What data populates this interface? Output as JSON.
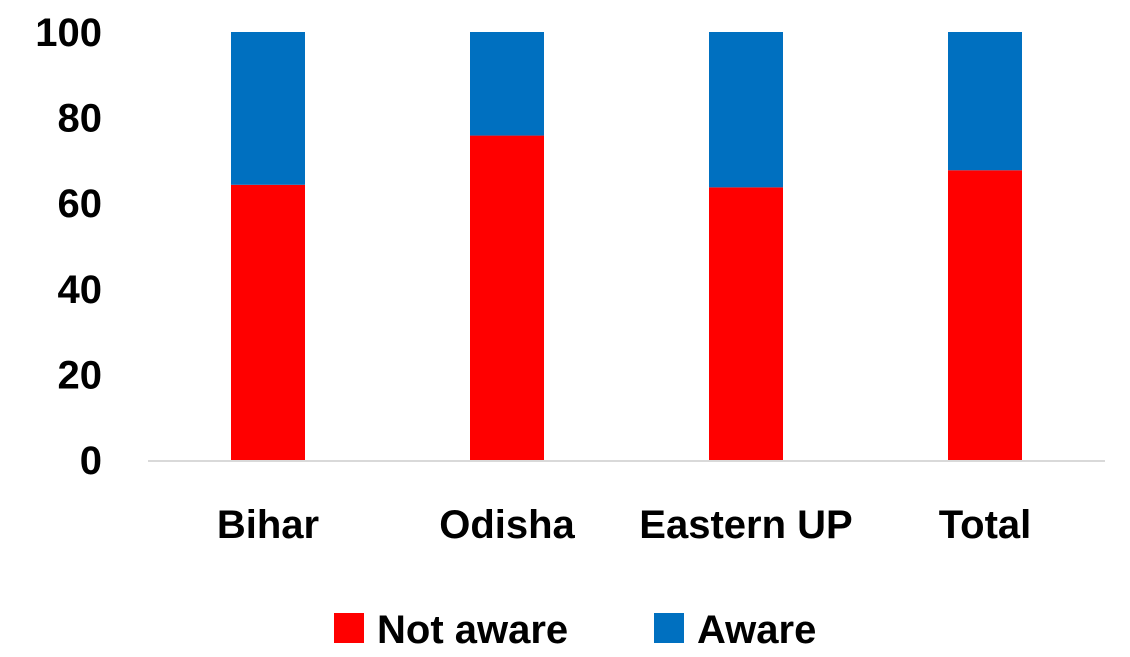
{
  "chart_data": {
    "type": "bar",
    "stacked": true,
    "categories": [
      "Bihar",
      "Odisha",
      "Eastern UP",
      "Total"
    ],
    "series": [
      {
        "name": "Not aware",
        "color": "#ff0000",
        "values": [
          64.3,
          75.8,
          63.7,
          67.7
        ]
      },
      {
        "name": "Aware",
        "color": "#0070c0",
        "values": [
          35.7,
          24.2,
          36.3,
          32.3
        ]
      }
    ],
    "ylim": [
      0,
      100
    ],
    "yticks": [
      "0",
      "20",
      "40",
      "60",
      "80",
      "100"
    ],
    "grid": false,
    "legend": "bottom"
  }
}
